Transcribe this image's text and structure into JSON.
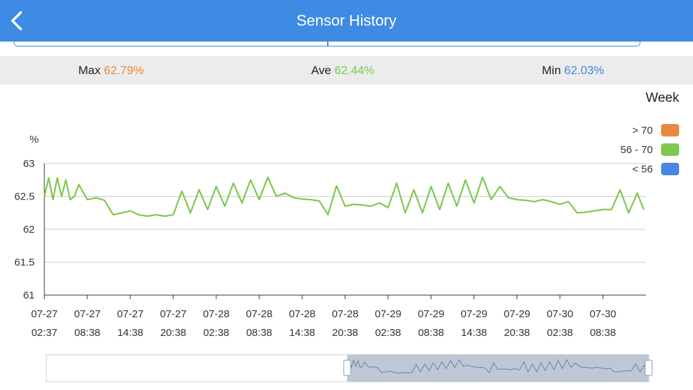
{
  "header": {
    "title": "Sensor History",
    "back_icon": "chevron-left-icon"
  },
  "stats": {
    "max_label": "Max",
    "max_value": "62.79%",
    "ave_label": "Ave",
    "ave_value": "62.44%",
    "min_label": "Min",
    "min_value": "62.03%"
  },
  "range_label": "Week",
  "legend": [
    {
      "label": "> 70",
      "color": "#e8883e"
    },
    {
      "label": "56 - 70",
      "color": "#7ec850"
    },
    {
      "label": "< 56",
      "color": "#4a86e6"
    }
  ],
  "colors": {
    "accent": "#3e8be3",
    "max": "#e8883e",
    "ave": "#7ec850",
    "min": "#4a86e6"
  },
  "chart_data": {
    "type": "line",
    "ylabel": "%",
    "ylim": [
      61,
      63
    ],
    "yticks": [
      "63",
      "62.5",
      "62",
      "61.5",
      "61"
    ],
    "xticks": [
      {
        "date": "07-27",
        "time": "02:37"
      },
      {
        "date": "07-27",
        "time": "08:38"
      },
      {
        "date": "07-27",
        "time": "14:38"
      },
      {
        "date": "07-27",
        "time": "20:38"
      },
      {
        "date": "07-28",
        "time": "02:38"
      },
      {
        "date": "07-28",
        "time": "08:38"
      },
      {
        "date": "07-28",
        "time": "14:38"
      },
      {
        "date": "07-28",
        "time": "20:38"
      },
      {
        "date": "07-29",
        "time": "02:38"
      },
      {
        "date": "07-29",
        "time": "08:38"
      },
      {
        "date": "07-29",
        "time": "14:38"
      },
      {
        "date": "07-29",
        "time": "20:38"
      },
      {
        "date": "07-30",
        "time": "02:38"
      },
      {
        "date": "07-30",
        "time": "08:38"
      }
    ],
    "grid": true,
    "series": [
      {
        "color": "#7ec850",
        "x": [
          0,
          0.1,
          0.2,
          0.3,
          0.4,
          0.5,
          0.6,
          0.7,
          0.8,
          1.0,
          1.2,
          1.4,
          1.6,
          1.8,
          2.0,
          2.2,
          2.4,
          2.6,
          2.8,
          3.0,
          3.2,
          3.4,
          3.6,
          3.8,
          4.0,
          4.2,
          4.4,
          4.6,
          4.8,
          5.0,
          5.2,
          5.4,
          5.6,
          5.8,
          6.0,
          6.2,
          6.4,
          6.6,
          6.8,
          7.0,
          7.2,
          7.4,
          7.6,
          7.8,
          8.0,
          8.2,
          8.4,
          8.6,
          8.8,
          9.0,
          9.2,
          9.4,
          9.6,
          9.8,
          10.0,
          10.2,
          10.4,
          10.6,
          10.8,
          11.0,
          11.2,
          11.4,
          11.6,
          11.8,
          12.0,
          12.2,
          12.4,
          12.6,
          12.8,
          13.0,
          13.2,
          13.4,
          13.6,
          13.8,
          13.95
        ],
        "y": [
          62.5,
          62.78,
          62.45,
          62.78,
          62.5,
          62.75,
          62.45,
          62.5,
          62.68,
          62.45,
          62.48,
          62.44,
          62.22,
          62.25,
          62.28,
          62.22,
          62.2,
          62.22,
          62.2,
          62.22,
          62.58,
          62.25,
          62.6,
          62.3,
          62.65,
          62.35,
          62.7,
          62.4,
          62.75,
          62.45,
          62.79,
          62.5,
          62.55,
          62.48,
          62.46,
          62.45,
          62.43,
          62.22,
          62.66,
          62.35,
          62.38,
          62.37,
          62.35,
          62.4,
          62.33,
          62.7,
          62.25,
          62.6,
          62.25,
          62.65,
          62.3,
          62.7,
          62.35,
          62.75,
          62.4,
          62.79,
          62.45,
          62.65,
          62.48,
          62.45,
          62.44,
          62.42,
          62.45,
          62.42,
          62.38,
          62.42,
          62.25,
          62.26,
          62.28,
          62.3,
          62.3,
          62.6,
          62.25,
          62.55,
          62.3
        ]
      }
    ]
  }
}
